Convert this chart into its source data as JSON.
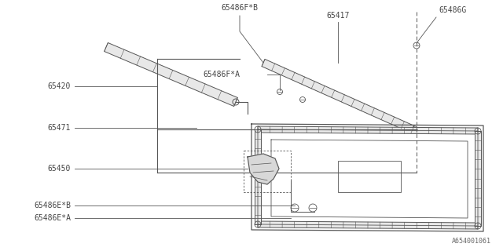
{
  "background_color": "#ffffff",
  "line_color": "#555555",
  "text_color": "#444444",
  "font_size": 7.0,
  "footnote": "A654001061",
  "labels": {
    "65486FB": "65486F*B",
    "65417": "65417",
    "65486G": "65486G",
    "65486FA": "65486F*A",
    "65420": "65420",
    "65471": "65471",
    "65450": "65450",
    "65486EB": "65486E*B",
    "65486EA": "65486E*A"
  }
}
